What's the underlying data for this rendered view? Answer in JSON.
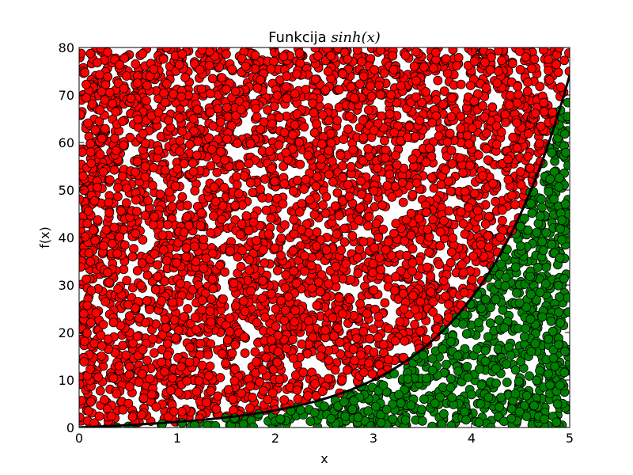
{
  "chart_data": {
    "type": "scatter",
    "title": "Funkcija ",
    "title_math": "sinh(x)",
    "xlabel": "x",
    "ylabel": "f(x)",
    "xlim": [
      0,
      5
    ],
    "ylim": [
      0,
      80
    ],
    "xticks": [
      "0",
      "1",
      "2",
      "3",
      "4",
      "5"
    ],
    "yticks": [
      "0",
      "10",
      "20",
      "30",
      "40",
      "50",
      "60",
      "70",
      "80"
    ],
    "grid": false,
    "curve": "sinh(x)",
    "colors": {
      "above": "#ff0000",
      "below": "#008000",
      "edge": "#000000"
    },
    "series": [
      {
        "label_hint": "points with y > sinh(x)",
        "color": "#ff0000",
        "points": [
          [
            0.12,
            5.4
          ],
          [
            0.35,
            22.1
          ],
          [
            0.58,
            47.9
          ],
          [
            0.81,
            66.3
          ],
          [
            1.04,
            12.8
          ],
          [
            1.27,
            33.5
          ],
          [
            1.5,
            71.2
          ],
          [
            1.73,
            55.6
          ],
          [
            1.96,
            18.4
          ],
          [
            2.19,
            40.7
          ],
          [
            2.42,
            63.9
          ],
          [
            2.65,
            27.3
          ],
          [
            2.88,
            49.1
          ],
          [
            3.11,
            74.6
          ],
          [
            3.34,
            36.2
          ],
          [
            3.57,
            58.8
          ],
          [
            3.8,
            69.4
          ],
          [
            4.03,
            77.1
          ],
          [
            4.26,
            72.5
          ],
          [
            4.49,
            79.2
          ]
        ]
      },
      {
        "label_hint": "points with y < sinh(x)",
        "color": "#008000",
        "points": [
          [
            2.05,
            1.8
          ],
          [
            2.4,
            3.1
          ],
          [
            2.8,
            5.6
          ],
          [
            3.1,
            8.9
          ],
          [
            3.35,
            10.2
          ],
          [
            3.6,
            14.5
          ],
          [
            3.8,
            6.3
          ],
          [
            3.95,
            19.7
          ],
          [
            4.1,
            25.1
          ],
          [
            4.25,
            12.4
          ],
          [
            4.35,
            31.6
          ],
          [
            4.5,
            38.2
          ],
          [
            4.6,
            22.8
          ],
          [
            4.7,
            44.5
          ],
          [
            4.8,
            52.3
          ],
          [
            4.9,
            35.7
          ],
          [
            4.95,
            61.8
          ],
          [
            4.98,
            68.4
          ]
        ]
      }
    ],
    "approx_point_counts": {
      "above": 3500,
      "below": 1200
    }
  }
}
